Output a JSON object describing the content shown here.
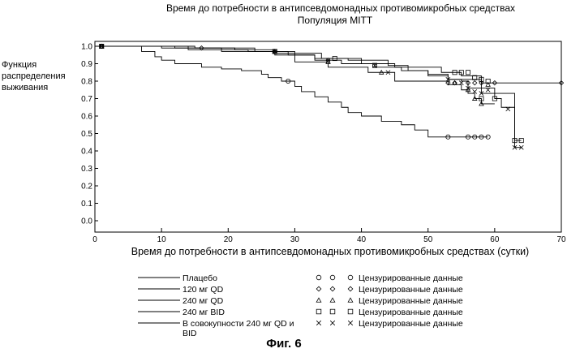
{
  "chart_data": {
    "type": "line",
    "title": "Время до потребности в антипсевдомонадных противомикробных средствах",
    "subtitle": "Популяция MITT",
    "xlabel": "Время до потребности в антипсевдомонадных противомикробных средствах (сутки)",
    "ylabel_lines": [
      "Функция",
      "распределения",
      "выживания"
    ],
    "xlim": [
      0,
      70
    ],
    "ylim": [
      0,
      1.0
    ],
    "xticks": [
      "0",
      "10",
      "20",
      "30",
      "40",
      "50",
      "60",
      "70"
    ],
    "yticks": [
      "0.0",
      "0.1",
      "0.2",
      "0.3",
      "0.4",
      "0.5",
      "0.6",
      "0.7",
      "0.8",
      "0.9",
      "1.0"
    ],
    "grid": false,
    "legend_position": "bottom",
    "censor_label": "Цензурированные данные",
    "series": [
      {
        "name": "Плацебо",
        "marker": "circle",
        "steps": [
          [
            0,
            1.0
          ],
          [
            7,
            0.97
          ],
          [
            9,
            0.94
          ],
          [
            10,
            0.92
          ],
          [
            12,
            0.9
          ],
          [
            16,
            0.88
          ],
          [
            19,
            0.87
          ],
          [
            22,
            0.86
          ],
          [
            25,
            0.84
          ],
          [
            26,
            0.82
          ],
          [
            28,
            0.8
          ],
          [
            30,
            0.77
          ],
          [
            31,
            0.74
          ],
          [
            33,
            0.71
          ],
          [
            35,
            0.68
          ],
          [
            37,
            0.65
          ],
          [
            38,
            0.62
          ],
          [
            40,
            0.6
          ],
          [
            43,
            0.57
          ],
          [
            46,
            0.55
          ],
          [
            48,
            0.52
          ],
          [
            50,
            0.48
          ],
          [
            59,
            0.48
          ]
        ],
        "censored": [
          [
            1,
            1.0
          ],
          [
            29,
            0.8
          ],
          [
            53,
            0.48
          ],
          [
            56,
            0.48
          ],
          [
            57,
            0.48
          ],
          [
            58,
            0.48
          ],
          [
            59,
            0.48
          ]
        ]
      },
      {
        "name": "120 мг QD",
        "marker": "diamond",
        "steps": [
          [
            0,
            1.0
          ],
          [
            10,
            0.99
          ],
          [
            21,
            0.98
          ],
          [
            27,
            0.97
          ],
          [
            30,
            0.95
          ],
          [
            33,
            0.93
          ],
          [
            38,
            0.92
          ],
          [
            44,
            0.89
          ],
          [
            47,
            0.86
          ],
          [
            50,
            0.83
          ],
          [
            53,
            0.81
          ],
          [
            58,
            0.79
          ],
          [
            61,
            0.79
          ],
          [
            70,
            0.79
          ]
        ],
        "censored": [
          [
            1,
            1.0
          ],
          [
            16,
            0.99
          ],
          [
            27,
            0.97
          ],
          [
            35,
            0.92
          ],
          [
            53,
            0.79
          ],
          [
            54,
            0.79
          ],
          [
            56,
            0.79
          ],
          [
            57,
            0.79
          ],
          [
            58,
            0.79
          ],
          [
            60,
            0.79
          ],
          [
            70,
            0.79
          ]
        ]
      },
      {
        "name": "240 мг QD",
        "marker": "triangle",
        "steps": [
          [
            0,
            1.0
          ],
          [
            14,
            0.98
          ],
          [
            23,
            0.97
          ],
          [
            27,
            0.95
          ],
          [
            30,
            0.91
          ],
          [
            35,
            0.88
          ],
          [
            41,
            0.85
          ],
          [
            45,
            0.8
          ],
          [
            53,
            0.78
          ],
          [
            55,
            0.75
          ],
          [
            56,
            0.73
          ],
          [
            57,
            0.7
          ],
          [
            58,
            0.67
          ],
          [
            60,
            0.67
          ]
        ],
        "censored": [
          [
            1,
            1.0
          ],
          [
            27,
            0.97
          ],
          [
            35,
            0.91
          ],
          [
            43,
            0.85
          ],
          [
            54,
            0.79
          ],
          [
            56,
            0.75
          ],
          [
            57,
            0.7
          ],
          [
            58,
            0.67
          ],
          [
            59,
            0.78
          ]
        ]
      },
      {
        "name": "240 мг BID",
        "marker": "square",
        "steps": [
          [
            0,
            1.0
          ],
          [
            12,
            0.99
          ],
          [
            19,
            0.97
          ],
          [
            27,
            0.96
          ],
          [
            34,
            0.93
          ],
          [
            40,
            0.9
          ],
          [
            45,
            0.88
          ],
          [
            52,
            0.85
          ],
          [
            55,
            0.83
          ],
          [
            58,
            0.76
          ],
          [
            60,
            0.73
          ],
          [
            63,
            0.46
          ],
          [
            64,
            0.46
          ]
        ],
        "censored": [
          [
            1,
            1.0
          ],
          [
            27,
            0.97
          ],
          [
            36,
            0.93
          ],
          [
            42,
            0.89
          ],
          [
            54,
            0.85
          ],
          [
            55,
            0.85
          ],
          [
            56,
            0.85
          ],
          [
            57,
            0.82
          ],
          [
            58,
            0.81
          ],
          [
            59,
            0.8
          ],
          [
            58,
            0.7
          ],
          [
            60,
            0.7
          ],
          [
            63,
            0.46
          ],
          [
            64,
            0.46
          ]
        ]
      },
      {
        "name_lines": [
          "В совокупности 240 мг QD и",
          "BID"
        ],
        "marker": "cross",
        "steps": [
          [
            0,
            1.0
          ],
          [
            15,
            0.99
          ],
          [
            24,
            0.97
          ],
          [
            29,
            0.95
          ],
          [
            33,
            0.92
          ],
          [
            37,
            0.9
          ],
          [
            42,
            0.88
          ],
          [
            46,
            0.86
          ],
          [
            50,
            0.84
          ],
          [
            53,
            0.81
          ],
          [
            55,
            0.8
          ],
          [
            56,
            0.76
          ],
          [
            58,
            0.73
          ],
          [
            60,
            0.7
          ],
          [
            61,
            0.65
          ],
          [
            63,
            0.42
          ],
          [
            64,
            0.42
          ]
        ],
        "censored": [
          [
            1,
            1.0
          ],
          [
            27,
            0.97
          ],
          [
            35,
            0.92
          ],
          [
            42,
            0.89
          ],
          [
            44,
            0.85
          ],
          [
            53,
            0.81
          ],
          [
            55,
            0.79
          ],
          [
            56,
            0.76
          ],
          [
            57,
            0.74
          ],
          [
            58,
            0.73
          ],
          [
            59,
            0.75
          ],
          [
            62,
            0.64
          ],
          [
            63,
            0.42
          ],
          [
            64,
            0.42
          ]
        ]
      }
    ]
  },
  "caption": "Фиг. 6"
}
